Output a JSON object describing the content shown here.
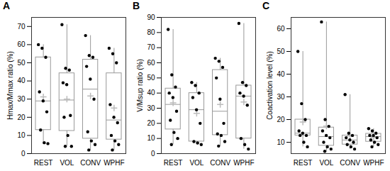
{
  "chart_data": [
    {
      "type": "box",
      "title": "A",
      "ylabel": "Hmax/Mmax ratio (%)",
      "color": "#000000",
      "categories": [
        "REST",
        "VOL",
        "CONV",
        "WPHF"
      ],
      "values": [
        [
          60,
          58,
          53,
          34,
          29,
          23,
          13,
          6,
          5.5
        ],
        [
          71,
          47,
          46,
          39,
          38,
          21,
          20,
          10,
          4,
          4
        ],
        [
          65,
          54,
          53,
          48,
          41,
          30,
          12,
          7,
          5,
          2
        ],
        [
          58,
          55,
          50,
          27,
          20,
          17,
          10,
          7,
          5,
          2
        ]
      ],
      "ylim": [
        0,
        75
      ],
      "yticks": [
        0,
        10,
        20,
        30,
        40,
        50,
        60,
        70
      ]
    },
    {
      "type": "box",
      "title": "B",
      "ylabel": "V/Msup ratio (%)",
      "color": "#000000",
      "categories": [
        "REST",
        "VOL",
        "CONV",
        "WPHF"
      ],
      "values": [
        [
          82,
          52,
          44,
          40,
          37,
          28,
          22,
          14,
          10,
          6
        ],
        [
          47,
          45,
          40,
          37,
          29,
          20,
          8,
          7,
          6
        ],
        [
          63,
          61,
          57,
          50,
          36,
          20,
          13,
          12,
          8,
          5
        ],
        [
          86,
          47,
          45,
          40,
          38,
          32,
          10,
          6,
          3
        ]
      ],
      "ylim": [
        0,
        90
      ],
      "yticks": [
        0,
        10,
        20,
        30,
        40,
        50,
        60,
        70,
        80,
        90
      ]
    },
    {
      "type": "box",
      "title": "C",
      "ylabel": "Coactivation level (%)",
      "color": "#000000",
      "categories": [
        "REST",
        "VOL",
        "CONV",
        "WPHF"
      ],
      "values": [
        [
          50,
          27,
          20,
          15,
          14,
          13,
          13,
          10,
          8
        ],
        [
          63,
          20,
          17,
          15,
          13,
          12,
          10,
          8,
          7,
          6
        ],
        [
          31,
          14,
          13,
          12,
          11,
          10,
          9,
          8,
          7
        ],
        [
          16,
          15,
          14,
          13,
          13,
          12,
          11,
          10,
          9,
          8
        ]
      ],
      "ylim": [
        5,
        65
      ],
      "yticks": [
        10,
        20,
        30,
        40,
        50,
        60
      ]
    }
  ]
}
